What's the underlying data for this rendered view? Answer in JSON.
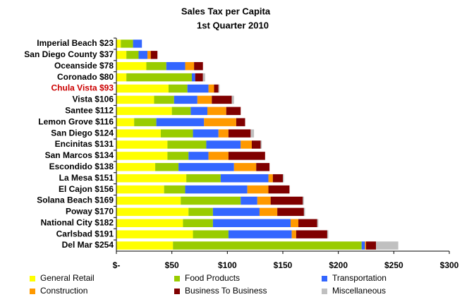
{
  "chart_data": {
    "type": "stacked_barh",
    "title": "Sales Tax per Capita",
    "subtitle": "1st Quarter 2010",
    "categories": [
      "Imperial Beach $23",
      "San Diego County $37",
      "Oceanside $78",
      "Coronado $80",
      "Chula Vista $93",
      "Vista $106",
      "Santee $112",
      "Lemon Grove $116",
      "San Diego $124",
      "Encinitas $131",
      "San Marcos $134",
      "Escondido $138",
      "La Mesa $151",
      "El Cajon $156",
      "Solana Beach $169",
      "Poway $170",
      "National City $182",
      "Carlsbad $191",
      "Del Mar $254"
    ],
    "highlight_index": 4,
    "highlight_color": "#cc0000",
    "series": [
      {
        "name": "General Retail",
        "color": "#ffff00",
        "values": [
          4,
          9,
          27,
          9,
          47,
          34,
          50,
          16,
          40,
          46,
          46,
          35,
          63,
          43,
          58,
          65,
          60,
          69,
          51
        ]
      },
      {
        "name": "Food Products",
        "color": "#99cc00",
        "values": [
          11,
          11,
          18,
          59,
          17,
          18,
          17,
          20,
          29,
          35,
          19,
          21,
          31,
          19,
          54,
          22,
          27,
          32,
          170
        ]
      },
      {
        "name": "Transportation",
        "color": "#3366ff",
        "values": [
          8,
          8,
          17,
          3,
          19,
          21,
          15,
          43,
          23,
          31,
          18,
          50,
          43,
          56,
          15,
          42,
          70,
          57,
          3
        ]
      },
      {
        "name": "Construction",
        "color": "#ff9900",
        "values": [
          0,
          3,
          8,
          0,
          5,
          13,
          17,
          29,
          9,
          10,
          18,
          20,
          4,
          19,
          12,
          16,
          7,
          4,
          1
        ]
      },
      {
        "name": "Business To Business",
        "color": "#800000",
        "values": [
          0,
          6,
          8,
          7,
          4,
          18,
          13,
          8,
          20,
          8,
          33,
          12,
          9,
          19,
          29,
          24,
          17,
          28,
          9
        ]
      },
      {
        "name": "Miscellaneous",
        "color": "#c0c0c0",
        "values": [
          0,
          0,
          0,
          2,
          1,
          2,
          0,
          0,
          3,
          1,
          0,
          0,
          1,
          0,
          1,
          1,
          1,
          1,
          20
        ]
      }
    ],
    "xlim": [
      0,
      300
    ],
    "xticks": [
      {
        "value": 0,
        "label": "$-"
      },
      {
        "value": 50,
        "label": "$50"
      },
      {
        "value": 100,
        "label": "$100"
      },
      {
        "value": 150,
        "label": "$150"
      },
      {
        "value": 200,
        "label": "$200"
      },
      {
        "value": 250,
        "label": "$250"
      },
      {
        "value": 300,
        "label": "$300"
      }
    ]
  }
}
